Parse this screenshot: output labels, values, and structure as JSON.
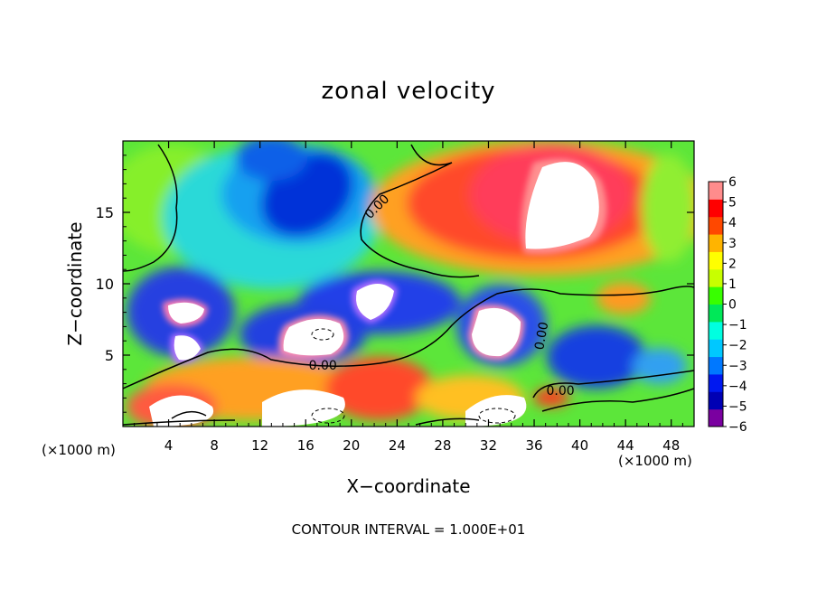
{
  "chart_data": {
    "type": "heatmap",
    "title": "zonal velocity",
    "xlabel": "X−coordinate",
    "ylabel": "Z−coordinate",
    "x_scale_note_left": "(×1000 m)",
    "x_scale_note_right": "(×1000 m)",
    "footer": "CONTOUR INTERVAL = 1.000E+01",
    "xlim": [
      0,
      50
    ],
    "ylim": [
      0,
      20
    ],
    "x_ticks": [
      4,
      8,
      12,
      16,
      20,
      24,
      28,
      32,
      36,
      40,
      44,
      48
    ],
    "x_tick_labels": [
      "4",
      "8",
      "12",
      "16",
      "20",
      "24",
      "28",
      "32",
      "36",
      "40",
      "44",
      "48"
    ],
    "y_ticks": [
      5,
      10,
      15
    ],
    "y_tick_labels": [
      "5",
      "10",
      "15"
    ],
    "colorbar": {
      "min": -6,
      "max": 6,
      "tick_labels": [
        "6",
        "5",
        "4",
        "3",
        "2",
        "1",
        "0",
        "−1",
        "−2",
        "−3",
        "−4",
        "−5",
        "−6"
      ],
      "colors": [
        "#7a00a0",
        "#0000b4",
        "#0018f0",
        "#0078ff",
        "#00c8ff",
        "#00ffe0",
        "#00e858",
        "#38ff00",
        "#c8ff00",
        "#ffff00",
        "#ffb400",
        "#ff4800",
        "#ff0000",
        "#ff8c8c"
      ]
    },
    "contour_labels": [
      {
        "text": "0.00",
        "x": 22.5,
        "z": 15.2,
        "rotate": -45
      },
      {
        "text": "0.00",
        "x": 17.5,
        "z": 4.0,
        "rotate": 0
      },
      {
        "text": "0.00",
        "x": 37.0,
        "z": 6.3,
        "rotate": -80
      },
      {
        "text": "0.00",
        "x": 38.3,
        "z": 2.2,
        "rotate": 0
      }
    ],
    "grid": false,
    "legend": "colorbar right"
  }
}
